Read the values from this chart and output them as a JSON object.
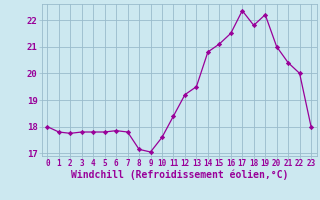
{
  "x": [
    0,
    1,
    2,
    3,
    4,
    5,
    6,
    7,
    8,
    9,
    10,
    11,
    12,
    13,
    14,
    15,
    16,
    17,
    18,
    19,
    20,
    21,
    22,
    23
  ],
  "y": [
    18.0,
    17.8,
    17.75,
    17.8,
    17.8,
    17.8,
    17.85,
    17.8,
    17.15,
    17.05,
    17.6,
    18.4,
    19.2,
    19.5,
    20.8,
    21.1,
    21.5,
    22.35,
    21.8,
    22.2,
    21.0,
    20.4,
    20.0,
    18.0
  ],
  "xlabel": "Windchill (Refroidissement éolien,°C)",
  "ylim": [
    16.9,
    22.6
  ],
  "xlim": [
    -0.5,
    23.5
  ],
  "xticks": [
    0,
    1,
    2,
    3,
    4,
    5,
    6,
    7,
    8,
    9,
    10,
    11,
    12,
    13,
    14,
    15,
    16,
    17,
    18,
    19,
    20,
    21,
    22,
    23
  ],
  "yticks": [
    17,
    18,
    19,
    20,
    21,
    22
  ],
  "line_color": "#990099",
  "marker_color": "#990099",
  "bg_color": "#cce8f0",
  "grid_color": "#99bbcc",
  "tick_label_color": "#990099",
  "xlabel_color": "#990099",
  "tick_fontsize": 5.5,
  "xlabel_fontsize": 7.0
}
